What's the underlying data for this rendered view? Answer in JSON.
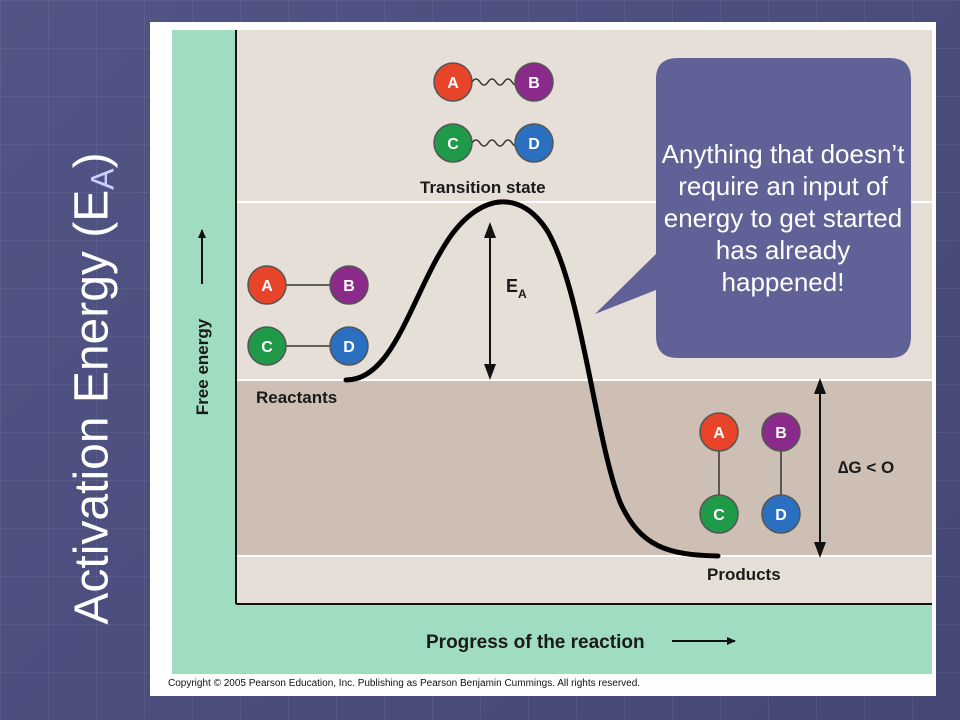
{
  "slide": {
    "title_main": "Activation Energy (E",
    "title_sub": "A",
    "title_close": ")"
  },
  "axes": {
    "ylabel": "Free energy",
    "xlabel": "Progress of the reaction"
  },
  "labels": {
    "reactants": "Reactants",
    "products": "Products",
    "transition_state": "Transition state",
    "ea_main": "E",
    "ea_sub": "A",
    "delta_g": "∆G < O"
  },
  "molecules": {
    "a": "A",
    "b": "B",
    "c": "C",
    "d": "D"
  },
  "callout": {
    "text": "Anything that doesn’t require an input of energy to get started has already happened!"
  },
  "copyright": "Copyright © 2005 Pearson Education, Inc. Publishing as Pearson Benjamin Cummings. All rights reserved.",
  "colors": {
    "a": "#e8442a",
    "b": "#8a2a8a",
    "c": "#1f9a48",
    "d": "#2a6fc0",
    "teal": "#9fdcc0",
    "upper_band": "#e6dfd8",
    "lower_band": "#cdbfb4",
    "callout": "#606196"
  }
}
